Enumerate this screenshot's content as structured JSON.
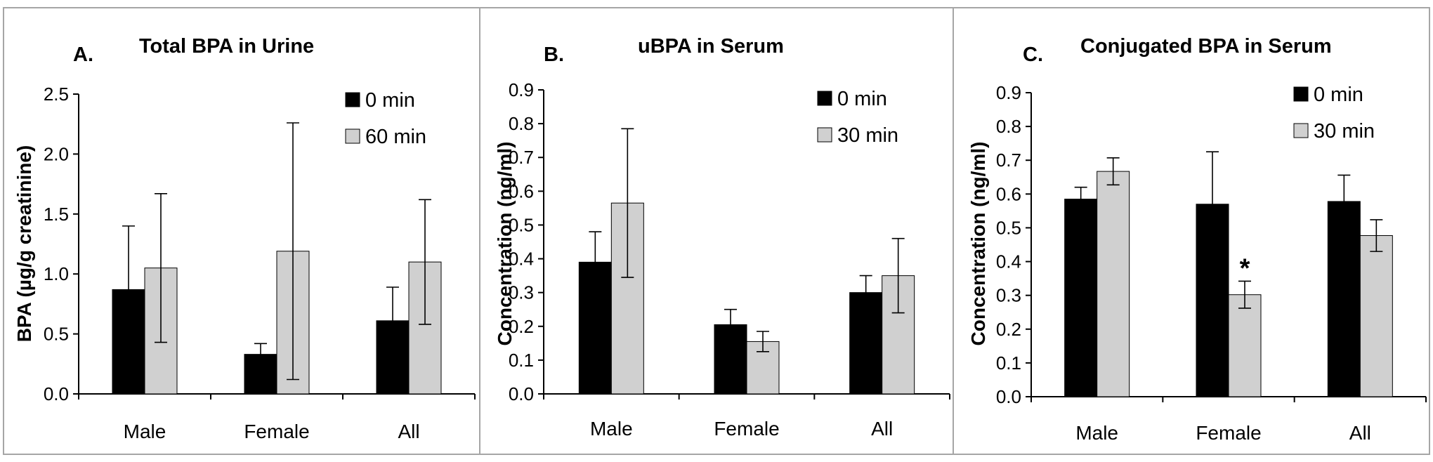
{
  "chart_data": [
    {
      "type": "bar",
      "panel_label": "A.",
      "title": "Total BPA in Urine",
      "xlabel": "",
      "ylabel": "BPA (µg/g creatinine)",
      "categories": [
        "Male",
        "Female",
        "All"
      ],
      "ylim": [
        0,
        2.5
      ],
      "yticks": [
        "0.0",
        "0.5",
        "1.0",
        "1.5",
        "2.0",
        "2.5"
      ],
      "legend_position": "top-right",
      "series": [
        {
          "name": "0 min",
          "color": "#000000",
          "values": [
            0.87,
            0.33,
            0.61
          ],
          "err_upper": [
            0.53,
            0.09,
            0.28
          ],
          "err_lower": [
            0,
            0,
            0
          ]
        },
        {
          "name": "60 min",
          "color": "#d0d0d0",
          "values": [
            1.05,
            1.19,
            1.1
          ],
          "err_upper": [
            0.62,
            1.07,
            0.52
          ],
          "err_lower": [
            0.62,
            1.07,
            0.52
          ]
        }
      ],
      "annotations": []
    },
    {
      "type": "bar",
      "panel_label": "B.",
      "title": "uBPA in Serum",
      "xlabel": "",
      "ylabel": "Concentration (ng/ml)",
      "categories": [
        "Male",
        "Female",
        "All"
      ],
      "ylim": [
        0,
        0.9
      ],
      "yticks": [
        "0.0",
        "0.1",
        "0.2",
        "0.3",
        "0.4",
        "0.5",
        "0.6",
        "0.7",
        "0.8",
        "0.9"
      ],
      "legend_position": "top-right",
      "series": [
        {
          "name": "0 min",
          "color": "#000000",
          "values": [
            0.39,
            0.205,
            0.3
          ],
          "err_upper": [
            0.09,
            0.045,
            0.05
          ],
          "err_lower": [
            0,
            0,
            0
          ]
        },
        {
          "name": "30 min",
          "color": "#d0d0d0",
          "values": [
            0.565,
            0.155,
            0.35
          ],
          "err_upper": [
            0.22,
            0.03,
            0.11
          ],
          "err_lower": [
            0.22,
            0.03,
            0.11
          ]
        }
      ],
      "annotations": []
    },
    {
      "type": "bar",
      "panel_label": "C.",
      "title": "Conjugated BPA in Serum",
      "xlabel": "",
      "ylabel": "Concentration (ng/ml)",
      "categories": [
        "Male",
        "Female",
        "All"
      ],
      "ylim": [
        0,
        0.9
      ],
      "yticks": [
        "0.0",
        "0.1",
        "0.2",
        "0.3",
        "0.4",
        "0.5",
        "0.6",
        "0.7",
        "0.8",
        "0.9"
      ],
      "legend_position": "top-right",
      "series": [
        {
          "name": "0 min",
          "color": "#000000",
          "values": [
            0.585,
            0.57,
            0.578
          ],
          "err_upper": [
            0.035,
            0.155,
            0.078
          ],
          "err_lower": [
            0,
            0,
            0
          ]
        },
        {
          "name": "30 min",
          "color": "#d0d0d0",
          "values": [
            0.667,
            0.302,
            0.477
          ],
          "err_upper": [
            0.04,
            0.04,
            0.047
          ],
          "err_lower": [
            0.04,
            0.04,
            0.047
          ]
        }
      ],
      "annotations": [
        {
          "text": "*",
          "category": "Female",
          "series": 1
        }
      ]
    }
  ]
}
